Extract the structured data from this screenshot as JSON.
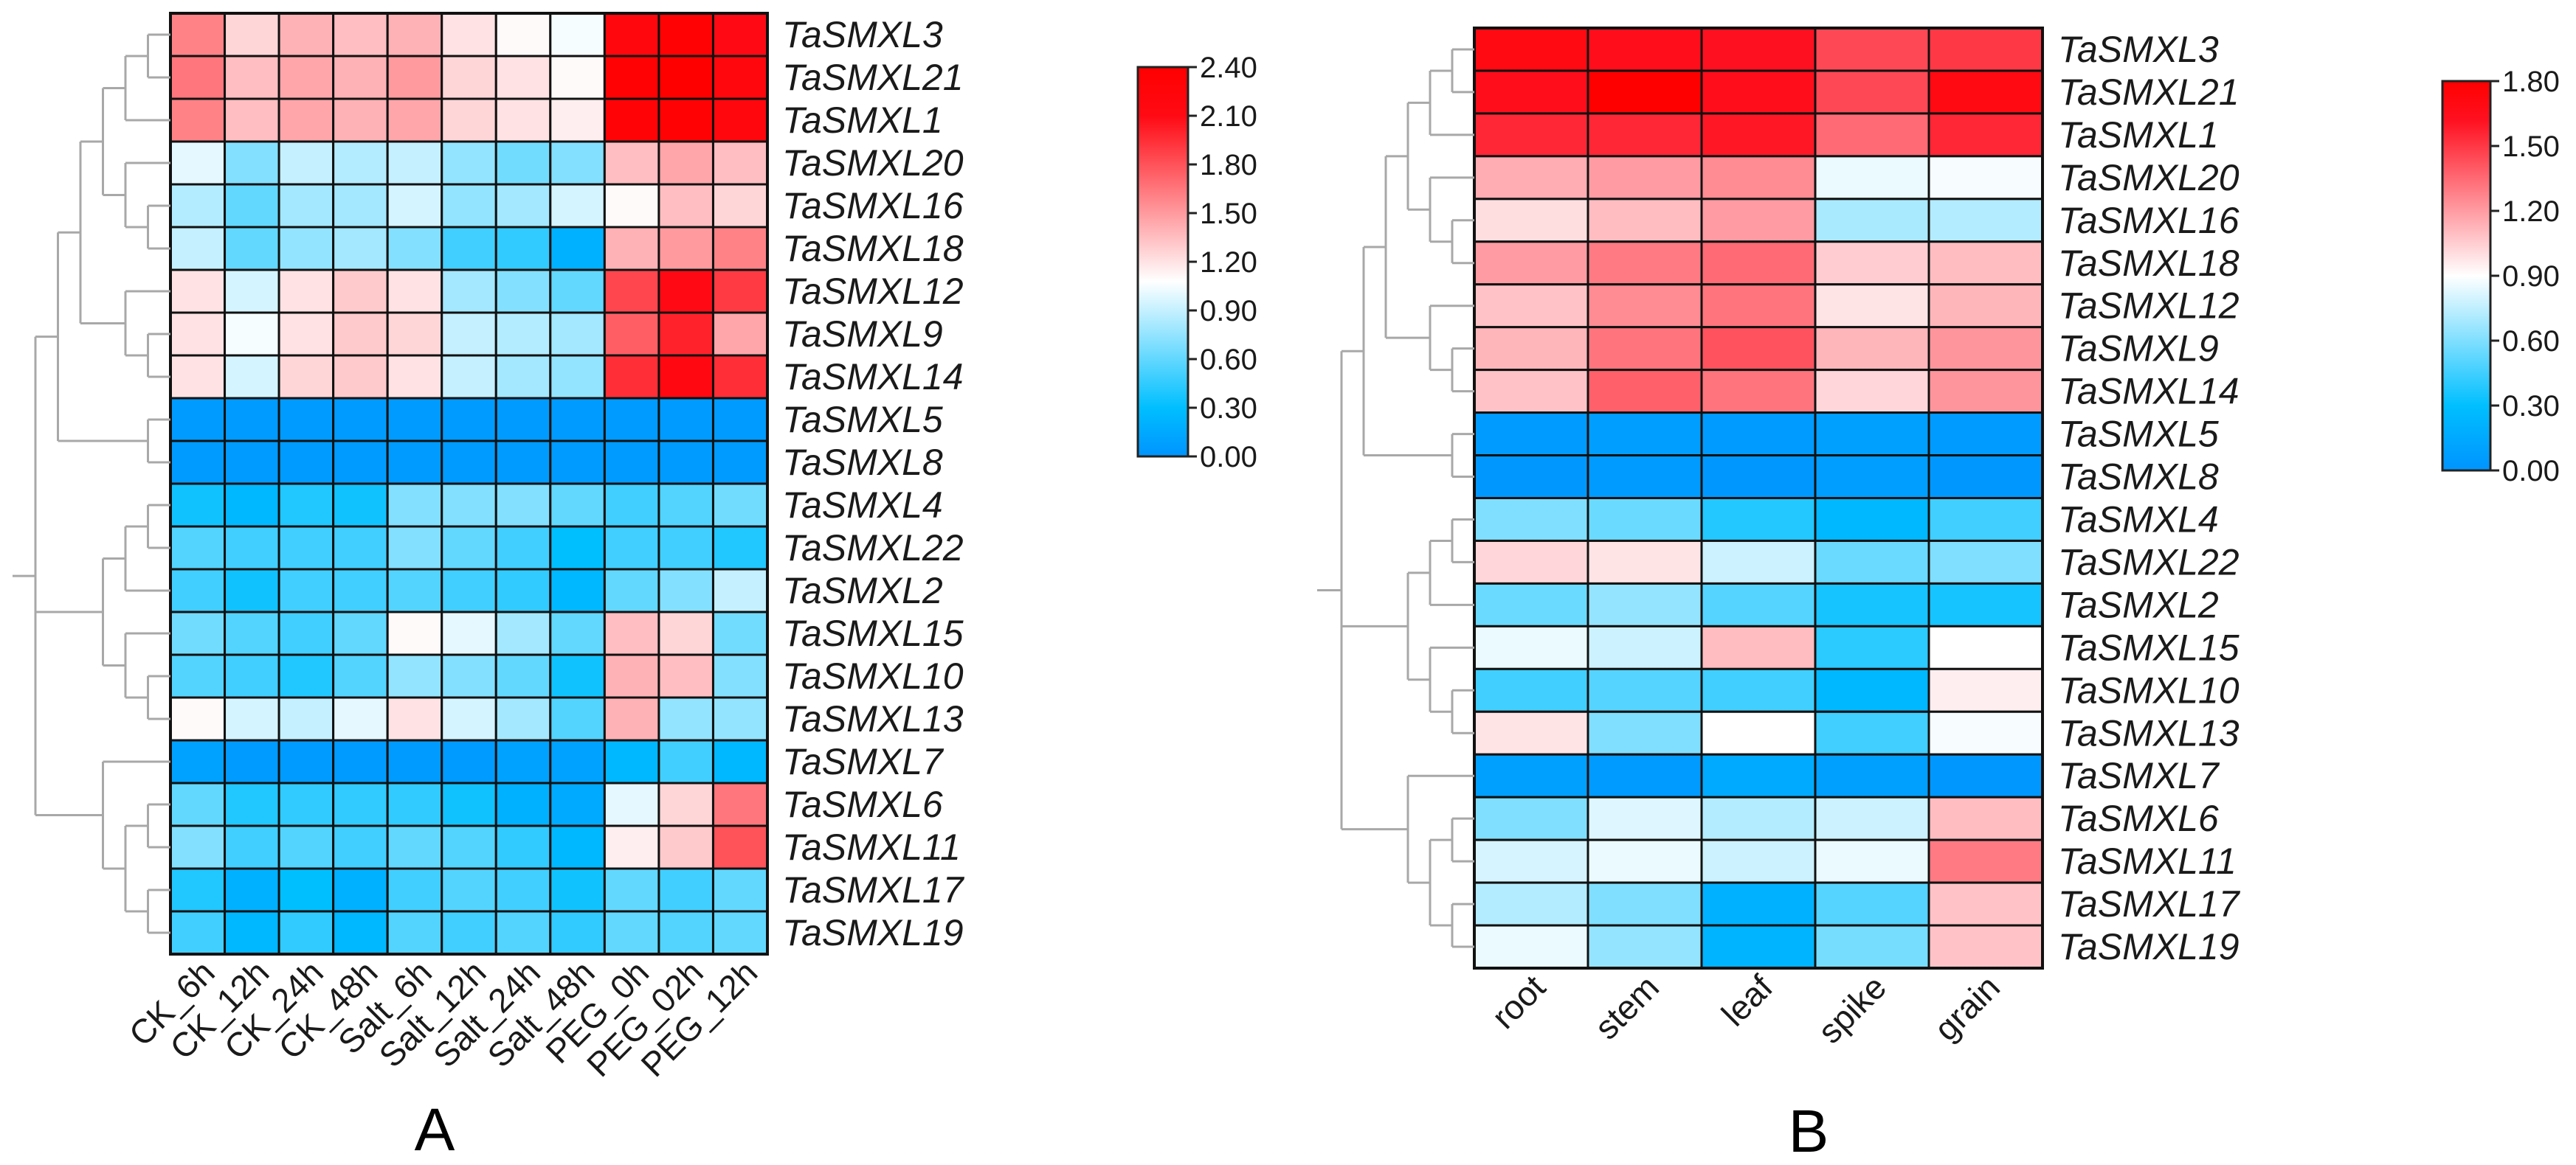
{
  "chart_data": [
    {
      "type": "heatmap",
      "panel_label": "A",
      "rows": [
        "TaSMXL3",
        "TaSMXL21",
        "TaSMXL1",
        "TaSMXL20",
        "TaSMXL16",
        "TaSMXL18",
        "TaSMXL12",
        "TaSMXL9",
        "TaSMXL14",
        "TaSMXL5",
        "TaSMXL8",
        "TaSMXL4",
        "TaSMXL22",
        "TaSMXL2",
        "TaSMXL15",
        "TaSMXL10",
        "TaSMXL13",
        "TaSMXL7",
        "TaSMXL6",
        "TaSMXL11",
        "TaSMXL17",
        "TaSMXL19"
      ],
      "columns": [
        "CK_6h",
        "CK_12h",
        "CK_24h",
        "CK_48h",
        "Salt_6h",
        "Salt_12h",
        "Salt_24h",
        "Salt_48h",
        "PEG_0h",
        "PEG_02h",
        "PEG_12h"
      ],
      "values": [
        [
          1.6,
          1.25,
          1.4,
          1.35,
          1.4,
          1.2,
          1.1,
          1.05,
          2.2,
          2.35,
          2.1
        ],
        [
          1.65,
          1.35,
          1.45,
          1.4,
          1.5,
          1.25,
          1.2,
          1.1,
          2.35,
          2.4,
          2.2
        ],
        [
          1.6,
          1.35,
          1.45,
          1.4,
          1.45,
          1.25,
          1.2,
          1.15,
          2.3,
          2.35,
          2.2
        ],
        [
          1.0,
          0.7,
          0.9,
          0.85,
          0.9,
          0.75,
          0.65,
          0.7,
          1.35,
          1.45,
          1.35
        ],
        [
          0.85,
          0.6,
          0.8,
          0.8,
          0.95,
          0.75,
          0.8,
          0.95,
          1.1,
          1.35,
          1.25
        ],
        [
          0.9,
          0.6,
          0.75,
          0.8,
          0.7,
          0.5,
          0.45,
          0.2,
          1.4,
          1.5,
          1.6
        ],
        [
          1.2,
          0.95,
          1.2,
          1.3,
          1.2,
          0.8,
          0.7,
          0.6,
          1.85,
          2.1,
          1.9
        ],
        [
          1.2,
          1.05,
          1.2,
          1.3,
          1.25,
          0.9,
          0.85,
          0.8,
          1.75,
          2.0,
          1.45
        ],
        [
          1.2,
          0.95,
          1.25,
          1.3,
          1.2,
          0.9,
          0.8,
          0.75,
          1.95,
          2.15,
          1.95
        ],
        [
          0.05,
          0.05,
          0.05,
          0.05,
          0.05,
          0.05,
          0.05,
          0.05,
          0.05,
          0.05,
          0.05
        ],
        [
          0.05,
          0.05,
          0.05,
          0.05,
          0.05,
          0.05,
          0.05,
          0.05,
          0.05,
          0.05,
          0.05
        ],
        [
          0.35,
          0.25,
          0.4,
          0.35,
          0.7,
          0.7,
          0.7,
          0.6,
          0.5,
          0.55,
          0.65
        ],
        [
          0.55,
          0.5,
          0.5,
          0.5,
          0.7,
          0.6,
          0.5,
          0.3,
          0.5,
          0.5,
          0.4
        ],
        [
          0.5,
          0.35,
          0.5,
          0.5,
          0.55,
          0.5,
          0.45,
          0.25,
          0.6,
          0.7,
          0.9
        ],
        [
          0.65,
          0.55,
          0.5,
          0.6,
          1.1,
          1.0,
          0.8,
          0.6,
          1.35,
          1.25,
          0.65
        ],
        [
          0.55,
          0.5,
          0.4,
          0.55,
          0.75,
          0.7,
          0.6,
          0.35,
          1.4,
          1.35,
          0.7
        ],
        [
          1.1,
          0.95,
          0.9,
          1.0,
          1.2,
          0.95,
          0.8,
          0.55,
          1.4,
          0.75,
          0.75
        ],
        [
          0.1,
          0.05,
          0.05,
          0.05,
          0.05,
          0.05,
          0.1,
          0.1,
          0.25,
          0.5,
          0.25
        ],
        [
          0.6,
          0.4,
          0.45,
          0.45,
          0.45,
          0.35,
          0.2,
          0.15,
          1.0,
          1.25,
          1.65
        ],
        [
          0.7,
          0.5,
          0.55,
          0.5,
          0.6,
          0.55,
          0.45,
          0.25,
          1.15,
          1.3,
          1.8
        ],
        [
          0.4,
          0.2,
          0.3,
          0.2,
          0.5,
          0.55,
          0.5,
          0.35,
          0.6,
          0.5,
          0.6
        ],
        [
          0.5,
          0.25,
          0.45,
          0.25,
          0.55,
          0.5,
          0.55,
          0.45,
          0.6,
          0.55,
          0.6
        ]
      ],
      "color_range": [
        0,
        2.4
      ],
      "colorbar_ticks": [
        "0.00",
        "0.30",
        "0.60",
        "0.90",
        "1.20",
        "1.50",
        "1.80",
        "2.10",
        "2.40"
      ],
      "color_stops": [
        [
          0,
          "#0094ff"
        ],
        [
          0.125,
          "#00bfff"
        ],
        [
          0.45,
          "#ffffff"
        ],
        [
          0.875,
          "#ff0a14"
        ],
        [
          1,
          "#ff0000"
        ]
      ],
      "dendrogram": [
        [
          [
            [
              [
                [
                  0,
                  1
                ],
                2
              ],
              [
                3,
                [
                  4,
                  5
                ]
              ]
            ],
            [
              6,
              [
                7,
                8
              ]
            ]
          ],
          [
            9,
            10
          ]
        ],
        [
          [
            [
              11,
              12
            ],
            13
          ],
          [
            14,
            [
              15,
              16
            ]
          ]
        ],
        [
          17,
          [
            [
              18,
              19
            ],
            [
              20,
              21
            ]
          ]
        ]
      ]
    },
    {
      "type": "heatmap",
      "panel_label": "B",
      "rows": [
        "TaSMXL3",
        "TaSMXL21",
        "TaSMXL1",
        "TaSMXL20",
        "TaSMXL16",
        "TaSMXL18",
        "TaSMXL12",
        "TaSMXL9",
        "TaSMXL14",
        "TaSMXL5",
        "TaSMXL8",
        "TaSMXL4",
        "TaSMXL22",
        "TaSMXL2",
        "TaSMXL15",
        "TaSMXL10",
        "TaSMXL13",
        "TaSMXL7",
        "TaSMXL6",
        "TaSMXL11",
        "TaSMXL17",
        "TaSMXL19"
      ],
      "columns": [
        "root",
        "stem",
        "leaf",
        "spike",
        "grain"
      ],
      "values": [
        [
          1.7,
          1.65,
          1.62,
          1.45,
          1.5
        ],
        [
          1.65,
          1.8,
          1.65,
          1.45,
          1.7
        ],
        [
          1.55,
          1.55,
          1.6,
          1.35,
          1.55
        ],
        [
          1.15,
          1.2,
          1.25,
          0.85,
          0.88
        ],
        [
          1.0,
          1.1,
          1.2,
          0.7,
          0.72
        ],
        [
          1.2,
          1.3,
          1.35,
          1.05,
          1.1
        ],
        [
          1.08,
          1.25,
          1.32,
          0.98,
          1.12
        ],
        [
          1.12,
          1.32,
          1.42,
          1.12,
          1.22
        ],
        [
          1.08,
          1.38,
          1.32,
          1.02,
          1.22
        ],
        [
          0.05,
          0.07,
          0.05,
          0.08,
          0.05
        ],
        [
          0.03,
          0.05,
          0.03,
          0.07,
          0.03
        ],
        [
          0.6,
          0.55,
          0.38,
          0.25,
          0.45
        ],
        [
          1.02,
          0.98,
          0.78,
          0.55,
          0.6
        ],
        [
          0.55,
          0.65,
          0.5,
          0.35,
          0.35
        ],
        [
          0.85,
          0.78,
          1.1,
          0.4,
          0.9
        ],
        [
          0.45,
          0.5,
          0.45,
          0.25,
          0.95
        ],
        [
          0.98,
          0.6,
          0.9,
          0.45,
          0.88
        ],
        [
          0.08,
          0.05,
          0.15,
          0.08,
          0.03
        ],
        [
          0.6,
          0.82,
          0.72,
          0.78,
          1.1
        ],
        [
          0.8,
          0.85,
          0.78,
          0.85,
          1.3
        ],
        [
          0.72,
          0.6,
          0.2,
          0.5,
          1.08
        ],
        [
          0.85,
          0.65,
          0.22,
          0.58,
          1.08
        ]
      ],
      "color_range": [
        0,
        1.8
      ],
      "colorbar_ticks": [
        "0.00",
        "0.30",
        "0.60",
        "0.90",
        "1.20",
        "1.50",
        "1.80"
      ],
      "color_stops": [
        [
          0,
          "#0094ff"
        ],
        [
          0.166,
          "#00bfff"
        ],
        [
          0.5,
          "#ffffff"
        ],
        [
          0.9,
          "#ff1020"
        ],
        [
          1,
          "#ff0000"
        ]
      ],
      "dendrogram": [
        [
          [
            [
              [
                [
                  0,
                  1
                ],
                2
              ],
              [
                3,
                [
                  4,
                  5
                ]
              ]
            ],
            [
              6,
              [
                7,
                8
              ]
            ]
          ],
          [
            9,
            10
          ]
        ],
        [
          [
            [
              11,
              12
            ],
            13
          ],
          [
            14,
            [
              15,
              16
            ]
          ]
        ],
        [
          17,
          [
            [
              18,
              19
            ],
            [
              20,
              21
            ]
          ]
        ]
      ]
    }
  ]
}
